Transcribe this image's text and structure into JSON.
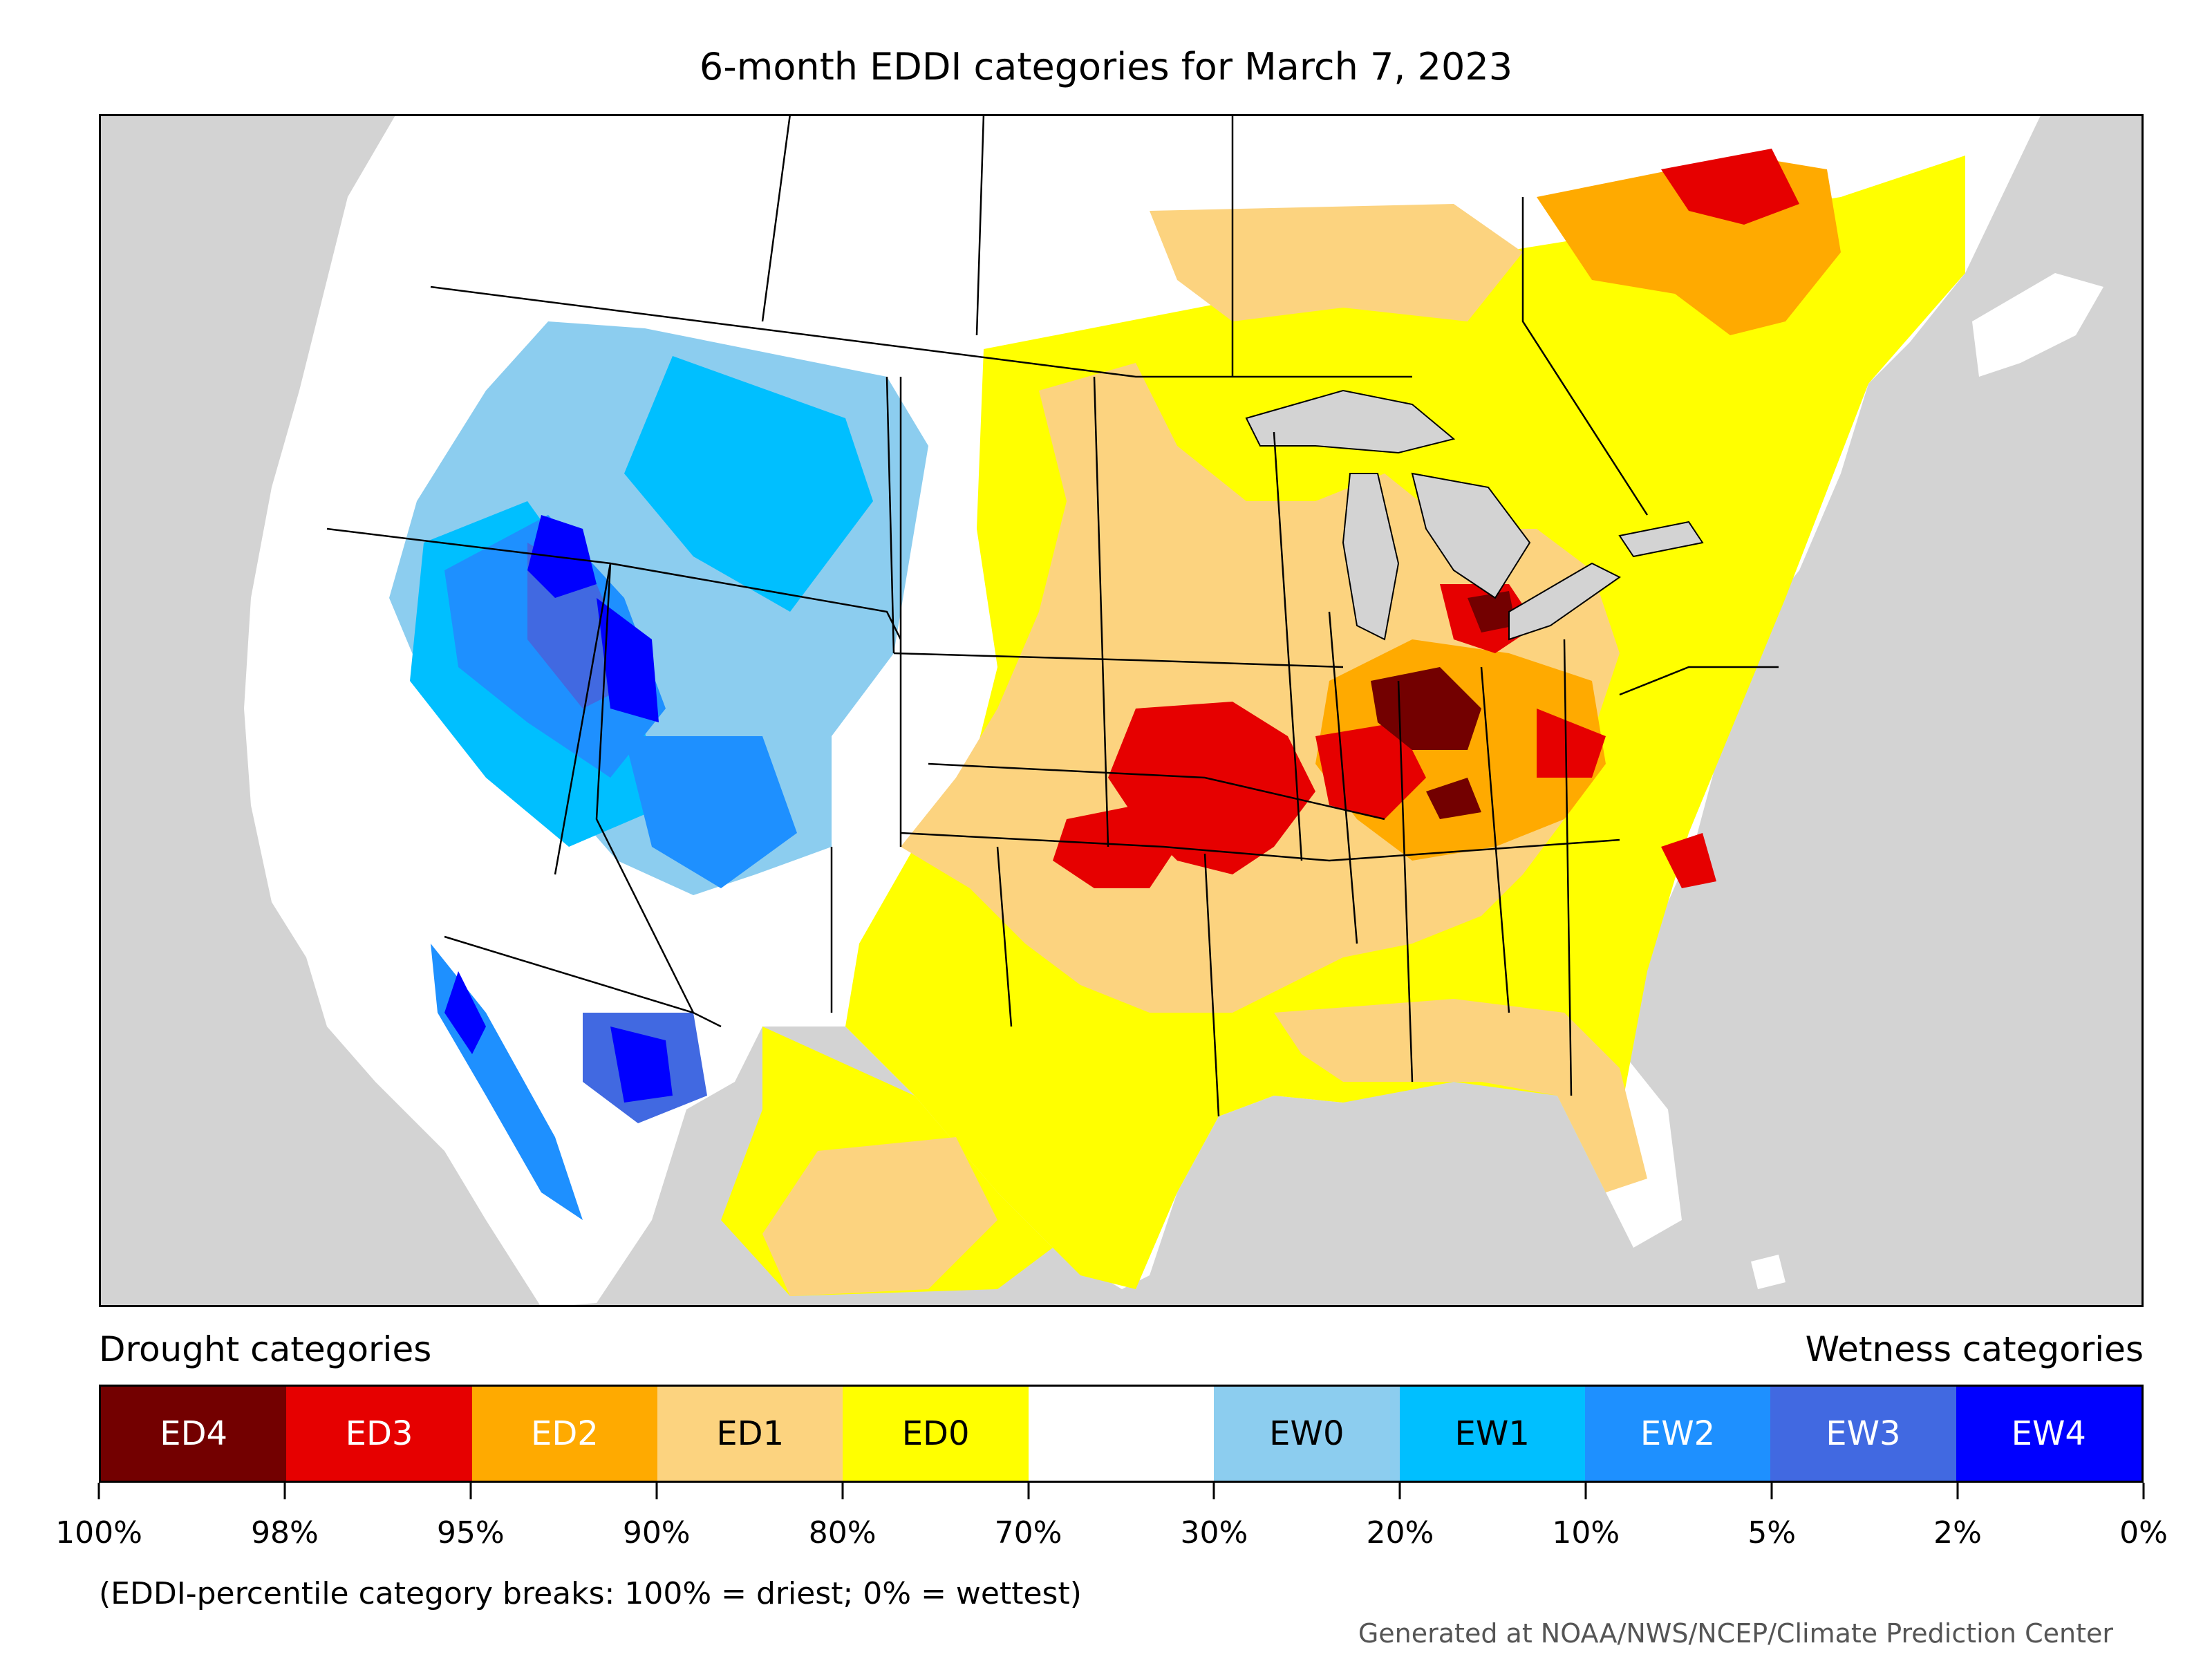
{
  "title": "6-month EDDI categories for March 7, 2023",
  "legend": {
    "drought_heading": "Drought categories",
    "wetness_heading": "Wetness categories",
    "categories": [
      {
        "label": "ED4",
        "color": "#730000",
        "text_color": "#ffffff"
      },
      {
        "label": "ED3",
        "color": "#e60000",
        "text_color": "#ffffff"
      },
      {
        "label": "ED2",
        "color": "#ffaa00",
        "text_color": "#ffffff"
      },
      {
        "label": "ED1",
        "color": "#fcd37f",
        "text_color": "#000000"
      },
      {
        "label": "ED0",
        "color": "#ffff00",
        "text_color": "#000000"
      },
      {
        "label": "",
        "color": "#ffffff",
        "text_color": "#000000"
      },
      {
        "label": "EW0",
        "color": "#8ccdef",
        "text_color": "#000000"
      },
      {
        "label": "EW1",
        "color": "#00bfff",
        "text_color": "#000000"
      },
      {
        "label": "EW2",
        "color": "#1e90ff",
        "text_color": "#ffffff"
      },
      {
        "label": "EW3",
        "color": "#4169e1",
        "text_color": "#ffffff"
      },
      {
        "label": "EW4",
        "color": "#0000ff",
        "text_color": "#ffffff"
      }
    ],
    "breaks": [
      "100%",
      "98%",
      "95%",
      "90%",
      "80%",
      "70%",
      "30%",
      "20%",
      "10%",
      "5%",
      "2%",
      "0%"
    ]
  },
  "note": "(EDDI-percentile category breaks: 100% = driest; 0% = wettest)",
  "credit": "Generated at NOAA/NWS/NCEP/Climate Prediction Center",
  "colors": {
    "ocean": "#d3d3d3",
    "land": "#ffffff",
    "border": "#000000"
  }
}
